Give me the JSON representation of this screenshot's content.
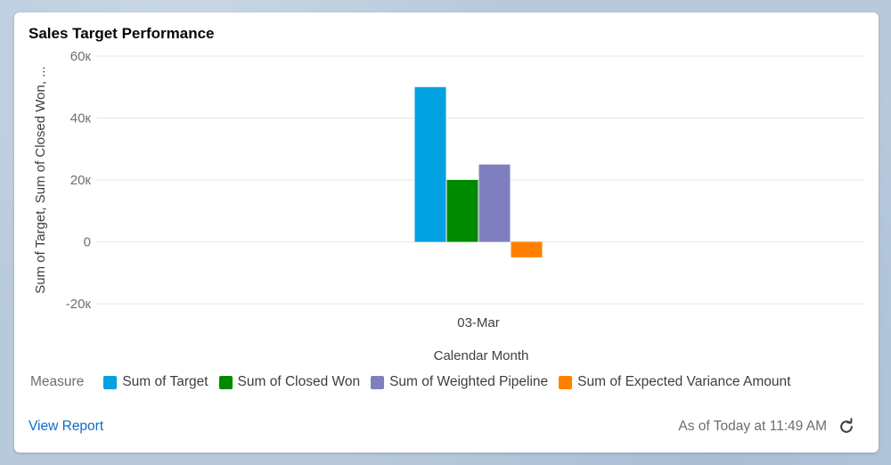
{
  "card": {
    "title": "Sales Target Performance"
  },
  "chart_data": {
    "type": "bar",
    "categories": [
      "03-Mar"
    ],
    "series": [
      {
        "name": "Sum of Target",
        "values": [
          50000
        ],
        "color": "#00a1e0"
      },
      {
        "name": "Sum of Closed Won",
        "values": [
          20000
        ],
        "color": "#008a00"
      },
      {
        "name": "Sum of Weighted Pipeline",
        "values": [
          25000
        ],
        "color": "#7f7fbf"
      },
      {
        "name": "Sum of Expected Variance Amount",
        "values": [
          -5000
        ],
        "color": "#ff8000"
      }
    ],
    "ylim": [
      -20000,
      60000
    ],
    "yticks": [
      60000,
      40000,
      20000,
      0,
      -20000
    ],
    "ytick_labels": [
      "60к",
      "40к",
      "20к",
      "0",
      "-20к"
    ],
    "xlabel": "Calendar Month",
    "ylabel": "Sum of Target, Sum of Closed Won, ...",
    "legend_title": "Measure",
    "legend_position": "bottom",
    "grid": true
  },
  "footer": {
    "view_report": "View Report",
    "timestamp": "As of Today at 11:49 AM"
  },
  "icons": {
    "refresh": "refresh-icon"
  }
}
